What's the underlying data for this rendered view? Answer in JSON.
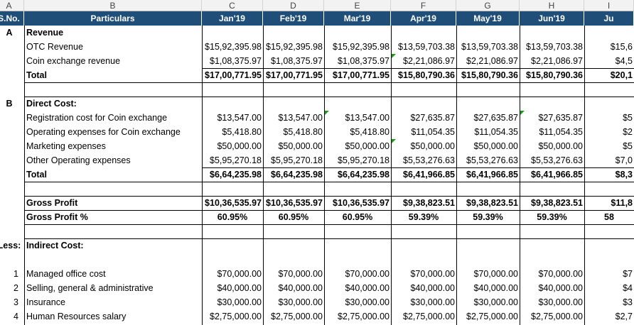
{
  "column_letters": [
    "A",
    "B",
    "C",
    "D",
    "E",
    "F",
    "G",
    "H",
    "I"
  ],
  "header": {
    "sno": "S.No.",
    "particulars": "Particulars",
    "months": [
      "Jan'19",
      "Feb'19",
      "Mar'19",
      "Apr'19",
      "May'19",
      "Jun'19",
      "Ju"
    ]
  },
  "revenue": {
    "sno": "A",
    "title": "Revenue",
    "rows": [
      {
        "label": "OTC Revenue",
        "values": [
          "$15,92,395.98",
          "$15,92,395.98",
          "$15,92,395.98",
          "$13,59,703.38",
          "$13,59,703.38",
          "$13,59,703.38",
          "$15,6"
        ]
      },
      {
        "label": "Coin exchange revenue",
        "values": [
          "$1,08,375.97",
          "$1,08,375.97",
          "$1,08,375.97",
          "$2,21,086.97",
          "$2,21,086.97",
          "$2,21,086.97",
          "$4,5"
        ]
      }
    ],
    "total": {
      "label": "Total",
      "values": [
        "$17,00,771.95",
        "$17,00,771.95",
        "$17,00,771.95",
        "$15,80,790.36",
        "$15,80,790.36",
        "$15,80,790.36",
        "$20,1"
      ]
    }
  },
  "direct_cost": {
    "sno": "B",
    "title": "Direct Cost:",
    "rows": [
      {
        "label": "Registration cost for Coin exchange",
        "values": [
          "$13,547.00",
          "$13,547.00",
          "$13,547.00",
          "$27,635.87",
          "$27,635.87",
          "$27,635.87",
          "$5"
        ]
      },
      {
        "label": "Operating expenses for Coin exchange",
        "values": [
          "$5,418.80",
          "$5,418.80",
          "$5,418.80",
          "$11,054.35",
          "$11,054.35",
          "$11,054.35",
          "$2"
        ]
      },
      {
        "label": "Marketing expenses",
        "values": [
          "$50,000.00",
          "$50,000.00",
          "$50,000.00",
          "$50,000.00",
          "$50,000.00",
          "$50,000.00",
          "$5"
        ]
      },
      {
        "label": "Other Operating expenses",
        "values": [
          "$5,95,270.18",
          "$5,95,270.18",
          "$5,95,270.18",
          "$5,53,276.63",
          "$5,53,276.63",
          "$5,53,276.63",
          "$7,0"
        ]
      }
    ],
    "total": {
      "label": "Total",
      "values": [
        "$6,64,235.98",
        "$6,64,235.98",
        "$6,64,235.98",
        "$6,41,966.85",
        "$6,41,966.85",
        "$6,41,966.85",
        "$8,3"
      ]
    }
  },
  "gross_profit": {
    "label": "Gross Profit",
    "values": [
      "$10,36,535.97",
      "$10,36,535.97",
      "$10,36,535.97",
      "$9,38,823.51",
      "$9,38,823.51",
      "$9,38,823.51",
      "$11,8"
    ]
  },
  "gross_profit_pct": {
    "label": "Gross Profit %",
    "values": [
      "60.95%",
      "60.95%",
      "60.95%",
      "59.39%",
      "59.39%",
      "59.39%",
      "58"
    ]
  },
  "indirect_cost": {
    "sno": "Less:",
    "title": "Indirect Cost:",
    "rows": [
      {
        "sno": "1",
        "label": "Managed office cost",
        "values": [
          "$70,000.00",
          "$70,000.00",
          "$70,000.00",
          "$70,000.00",
          "$70,000.00",
          "$70,000.00",
          "$7"
        ]
      },
      {
        "sno": "2",
        "label": "Selling, general & administrative",
        "values": [
          "$40,000.00",
          "$40,000.00",
          "$40,000.00",
          "$40,000.00",
          "$40,000.00",
          "$40,000.00",
          "$4"
        ]
      },
      {
        "sno": "3",
        "label": "Insurance",
        "values": [
          "$30,000.00",
          "$30,000.00",
          "$30,000.00",
          "$30,000.00",
          "$30,000.00",
          "$30,000.00",
          "$3"
        ]
      },
      {
        "sno": "4",
        "label": "Human Resources salary",
        "values": [
          "$2,75,000.00",
          "$2,75,000.00",
          "$2,75,000.00",
          "$2,75,000.00",
          "$2,75,000.00",
          "$2,75,000.00",
          "$2,7"
        ]
      }
    ]
  },
  "colors": {
    "header_bg": "#1f4e79",
    "header_text": "#ffffff",
    "note_marker": "#1a9a1a"
  }
}
